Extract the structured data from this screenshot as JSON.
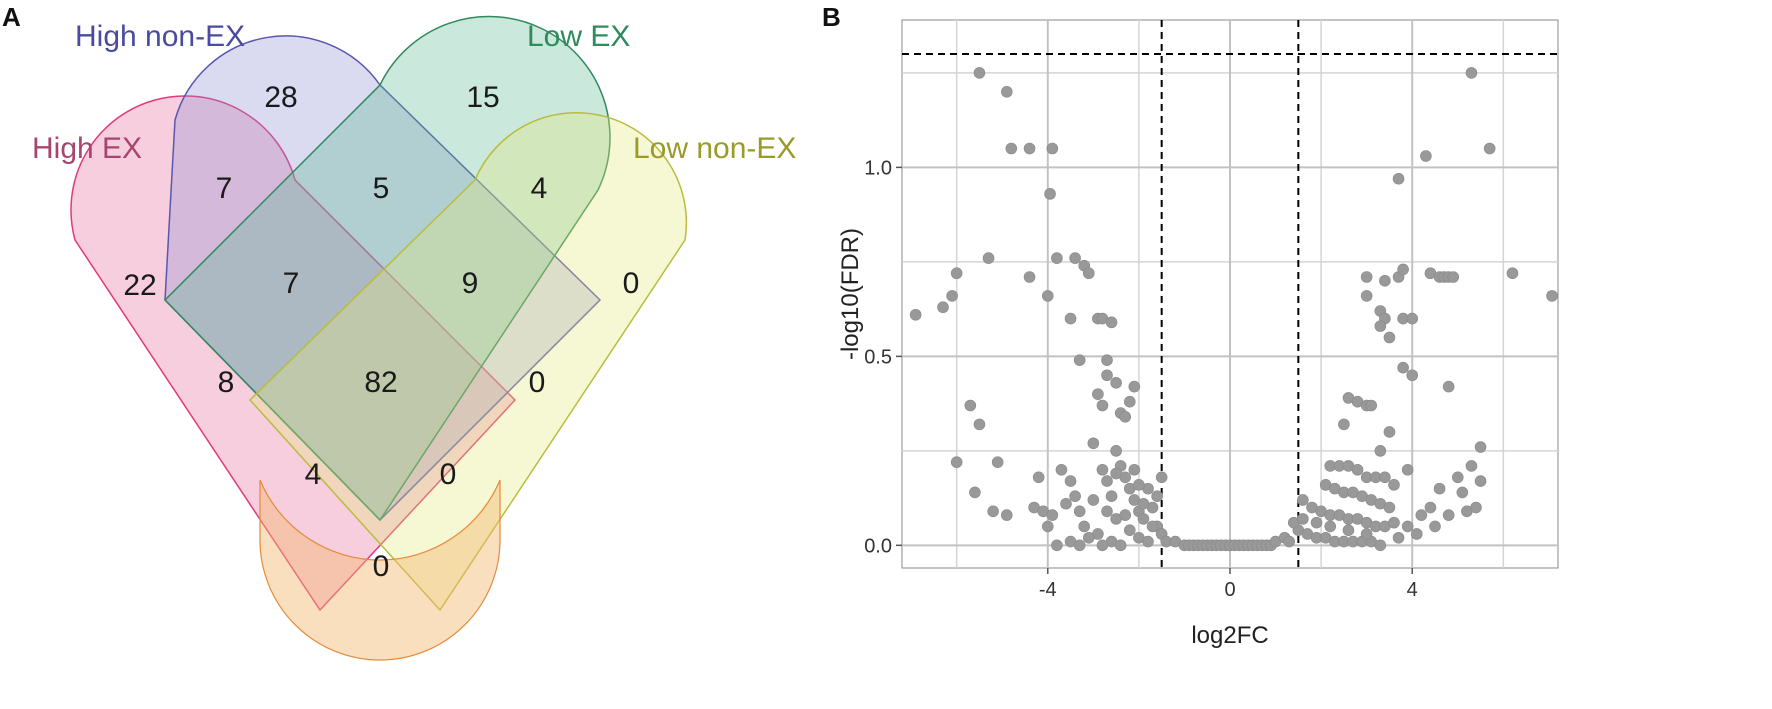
{
  "panels": {
    "a": "A",
    "b": "B"
  },
  "chart_data": [
    {
      "type": "venn",
      "sets": [
        {
          "name": "High EX",
          "color": "#e8739e",
          "text_color": "#a8456f"
        },
        {
          "name": "High non-EX",
          "color": "#8f8fd6",
          "text_color": "#4a4aa0"
        },
        {
          "name": "Low EX",
          "color": "#5fb991",
          "text_color": "#2f8a5c"
        },
        {
          "name": "Low non-EX",
          "color": "#e4e87a",
          "text_color": "#9a9a2a"
        }
      ],
      "regions": [
        {
          "sets": [
            "High non-EX"
          ],
          "count": "28"
        },
        {
          "sets": [
            "Low EX"
          ],
          "count": "15"
        },
        {
          "sets": [
            "High EX",
            "High non-EX"
          ],
          "count": "7"
        },
        {
          "sets": [
            "High non-EX",
            "Low EX"
          ],
          "count": "5"
        },
        {
          "sets": [
            "Low EX",
            "Low non-EX"
          ],
          "count": "4"
        },
        {
          "sets": [
            "High EX"
          ],
          "count": "22"
        },
        {
          "sets": [
            "High EX",
            "High non-EX",
            "Low EX"
          ],
          "count": "7"
        },
        {
          "sets": [
            "High non-EX",
            "Low EX",
            "Low non-EX"
          ],
          "count": "9"
        },
        {
          "sets": [
            "Low non-EX"
          ],
          "count": "0"
        },
        {
          "sets": [
            "High EX",
            "Low EX"
          ],
          "count": "8"
        },
        {
          "sets": [
            "High EX",
            "High non-EX",
            "Low EX",
            "Low non-EX"
          ],
          "count": "82"
        },
        {
          "sets": [
            "High non-EX",
            "Low non-EX"
          ],
          "count": "0"
        },
        {
          "sets": [
            "High EX",
            "Low EX",
            "Low non-EX"
          ],
          "count": "4"
        },
        {
          "sets": [
            "High EX",
            "High non-EX",
            "Low non-EX"
          ],
          "count": "0"
        },
        {
          "sets": [
            "High EX",
            "Low non-EX"
          ],
          "count": "0"
        }
      ]
    },
    {
      "type": "scatter",
      "subtype": "volcano",
      "xlabel": "log2FC",
      "ylabel": "-log10(FDR)",
      "xlim": [
        -7.2,
        7.2
      ],
      "ylim": [
        -0.06,
        1.39
      ],
      "xticks": [
        "-4",
        "0",
        "4"
      ],
      "xtick_values": [
        -4,
        0,
        4
      ],
      "yticks": [
        "0.0",
        "0.5",
        "1.0"
      ],
      "ytick_values": [
        0.0,
        0.5,
        1.0
      ],
      "minor_x": [
        -6,
        -2,
        2,
        6
      ],
      "minor_y": [
        0.25,
        0.75,
        1.25
      ],
      "threshold_lines": {
        "x": [
          -1.5,
          1.5
        ],
        "y": 1.3
      },
      "point_color": "#999999",
      "points": [
        [
          -5.5,
          1.25
        ],
        [
          -4.9,
          1.2
        ],
        [
          -4.8,
          1.05
        ],
        [
          -4.4,
          1.05
        ],
        [
          -3.9,
          1.05
        ],
        [
          -3.95,
          0.93
        ],
        [
          -5.3,
          0.76
        ],
        [
          -6.0,
          0.72
        ],
        [
          -4.4,
          0.71
        ],
        [
          -3.8,
          0.76
        ],
        [
          -3.4,
          0.76
        ],
        [
          -3.2,
          0.74
        ],
        [
          -3.1,
          0.72
        ],
        [
          -6.1,
          0.66
        ],
        [
          -6.3,
          0.63
        ],
        [
          -6.9,
          0.61
        ],
        [
          -4.0,
          0.66
        ],
        [
          -3.5,
          0.6
        ],
        [
          -2.9,
          0.6
        ],
        [
          -2.8,
          0.6
        ],
        [
          -2.6,
          0.59
        ],
        [
          -3.3,
          0.49
        ],
        [
          -2.7,
          0.49
        ],
        [
          -2.7,
          0.45
        ],
        [
          -2.5,
          0.43
        ],
        [
          -2.1,
          0.42
        ],
        [
          -2.2,
          0.38
        ],
        [
          -2.9,
          0.4
        ],
        [
          -2.8,
          0.37
        ],
        [
          -2.4,
          0.35
        ],
        [
          -2.3,
          0.34
        ],
        [
          -3.0,
          0.27
        ],
        [
          -2.5,
          0.25
        ],
        [
          -5.7,
          0.37
        ],
        [
          -5.5,
          0.32
        ],
        [
          -5.1,
          0.22
        ],
        [
          -6.0,
          0.22
        ],
        [
          -5.6,
          0.14
        ],
        [
          -5.2,
          0.09
        ],
        [
          -4.9,
          0.08
        ],
        [
          -4.3,
          0.1
        ],
        [
          -4.1,
          0.09
        ],
        [
          -3.9,
          0.08
        ],
        [
          -4.0,
          0.05
        ],
        [
          -4.2,
          0.18
        ],
        [
          -3.7,
          0.2
        ],
        [
          -3.5,
          0.17
        ],
        [
          -3.3,
          0.09
        ],
        [
          -3.2,
          0.05
        ],
        [
          -3.0,
          0.12
        ],
        [
          -2.8,
          0.2
        ],
        [
          -2.7,
          0.17
        ],
        [
          -2.6,
          0.13
        ],
        [
          -2.4,
          0.21
        ],
        [
          -2.3,
          0.18
        ],
        [
          -2.2,
          0.15
        ],
        [
          -2.1,
          0.12
        ],
        [
          -2.0,
          0.09
        ],
        [
          -1.9,
          0.07
        ],
        [
          -1.8,
          0.15
        ],
        [
          -1.7,
          0.1
        ],
        [
          -1.6,
          0.05
        ],
        [
          -1.5,
          0.03
        ],
        [
          -2.5,
          0.07
        ],
        [
          -2.2,
          0.04
        ],
        [
          -2.9,
          0.03
        ],
        [
          -3.1,
          0.02
        ],
        [
          -3.5,
          0.01
        ],
        [
          -2.6,
          0.01
        ],
        [
          -2.0,
          0.02
        ],
        [
          -1.8,
          0.01
        ],
        [
          -1.4,
          0.01
        ],
        [
          -1.2,
          0.01
        ],
        [
          -1.0,
          0.0
        ],
        [
          -2.4,
          0.0
        ],
        [
          -2.8,
          0.0
        ],
        [
          -3.3,
          0.0
        ],
        [
          -3.8,
          0.0
        ],
        [
          -1.9,
          0.11
        ],
        [
          -2.7,
          0.09
        ],
        [
          -2.3,
          0.08
        ],
        [
          -1.6,
          0.13
        ],
        [
          -3.6,
          0.11
        ],
        [
          -3.4,
          0.13
        ],
        [
          -2.0,
          0.16
        ],
        [
          -1.5,
          0.18
        ],
        [
          -2.1,
          0.2
        ],
        [
          -2.5,
          0.19
        ],
        [
          -1.7,
          0.05
        ],
        [
          -0.9,
          0.0
        ],
        [
          -0.8,
          0.0
        ],
        [
          -0.7,
          0.0
        ],
        [
          -0.6,
          0.0
        ],
        [
          -0.5,
          0.0
        ],
        [
          -0.4,
          0.0
        ],
        [
          -0.3,
          0.0
        ],
        [
          -0.2,
          0.0
        ],
        [
          -0.1,
          0.0
        ],
        [
          0.0,
          0.0
        ],
        [
          0.1,
          0.0
        ],
        [
          0.2,
          0.0
        ],
        [
          0.3,
          0.0
        ],
        [
          0.4,
          0.0
        ],
        [
          0.5,
          0.0
        ],
        [
          0.6,
          0.0
        ],
        [
          0.7,
          0.0
        ],
        [
          0.8,
          0.0
        ],
        [
          0.9,
          0.0
        ],
        [
          1.0,
          0.01
        ],
        [
          5.3,
          1.25
        ],
        [
          5.7,
          1.05
        ],
        [
          4.3,
          1.03
        ],
        [
          3.7,
          0.97
        ],
        [
          3.0,
          0.71
        ],
        [
          3.4,
          0.7
        ],
        [
          3.7,
          0.71
        ],
        [
          3.8,
          0.73
        ],
        [
          4.4,
          0.72
        ],
        [
          4.6,
          0.71
        ],
        [
          4.7,
          0.71
        ],
        [
          4.8,
          0.71
        ],
        [
          4.9,
          0.71
        ],
        [
          6.2,
          0.72
        ],
        [
          7.2,
          0.66
        ],
        [
          3.0,
          0.66
        ],
        [
          3.3,
          0.62
        ],
        [
          3.4,
          0.6
        ],
        [
          3.3,
          0.58
        ],
        [
          3.5,
          0.55
        ],
        [
          3.8,
          0.6
        ],
        [
          4.0,
          0.6
        ],
        [
          3.8,
          0.47
        ],
        [
          4.0,
          0.45
        ],
        [
          4.8,
          0.42
        ],
        [
          2.6,
          0.39
        ],
        [
          2.8,
          0.38
        ],
        [
          3.0,
          0.37
        ],
        [
          3.1,
          0.37
        ],
        [
          3.5,
          0.3
        ],
        [
          2.5,
          0.32
        ],
        [
          3.3,
          0.25
        ],
        [
          3.9,
          0.2
        ],
        [
          5.5,
          0.26
        ],
        [
          5.3,
          0.21
        ],
        [
          5.5,
          0.17
        ],
        [
          5.1,
          0.14
        ],
        [
          2.2,
          0.21
        ],
        [
          2.4,
          0.21
        ],
        [
          2.6,
          0.21
        ],
        [
          2.8,
          0.2
        ],
        [
          3.0,
          0.18
        ],
        [
          3.2,
          0.18
        ],
        [
          3.4,
          0.18
        ],
        [
          3.6,
          0.16
        ],
        [
          2.1,
          0.16
        ],
        [
          2.3,
          0.15
        ],
        [
          2.5,
          0.14
        ],
        [
          2.7,
          0.14
        ],
        [
          2.9,
          0.13
        ],
        [
          3.1,
          0.12
        ],
        [
          3.3,
          0.11
        ],
        [
          3.5,
          0.1
        ],
        [
          1.6,
          0.12
        ],
        [
          1.8,
          0.1
        ],
        [
          2.0,
          0.09
        ],
        [
          2.2,
          0.08
        ],
        [
          2.4,
          0.08
        ],
        [
          2.6,
          0.07
        ],
        [
          2.8,
          0.07
        ],
        [
          3.0,
          0.06
        ],
        [
          3.2,
          0.05
        ],
        [
          3.4,
          0.05
        ],
        [
          3.6,
          0.06
        ],
        [
          3.9,
          0.05
        ],
        [
          4.2,
          0.08
        ],
        [
          4.4,
          0.1
        ],
        [
          4.6,
          0.15
        ],
        [
          5.0,
          0.18
        ],
        [
          5.2,
          0.09
        ],
        [
          4.8,
          0.08
        ],
        [
          4.1,
          0.03
        ],
        [
          3.7,
          0.02
        ],
        [
          1.5,
          0.04
        ],
        [
          1.7,
          0.03
        ],
        [
          1.9,
          0.02
        ],
        [
          2.1,
          0.02
        ],
        [
          2.3,
          0.01
        ],
        [
          2.5,
          0.01
        ],
        [
          2.7,
          0.01
        ],
        [
          2.9,
          0.01
        ],
        [
          3.1,
          0.01
        ],
        [
          3.3,
          0.0
        ],
        [
          1.2,
          0.02
        ],
        [
          1.3,
          0.01
        ],
        [
          1.4,
          0.06
        ],
        [
          1.6,
          0.07
        ],
        [
          1.9,
          0.06
        ],
        [
          2.2,
          0.05
        ],
        [
          2.6,
          0.04
        ],
        [
          3.0,
          0.03
        ],
        [
          4.5,
          0.05
        ],
        [
          5.4,
          0.1
        ]
      ]
    }
  ]
}
